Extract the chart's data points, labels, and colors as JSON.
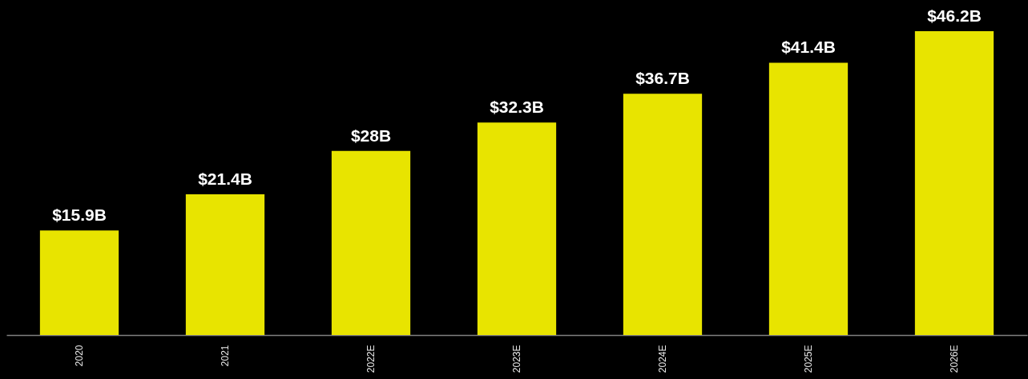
{
  "chart_data": {
    "type": "bar",
    "categories": [
      "2020",
      "2021",
      "2022E",
      "2023E",
      "2024E",
      "2025E",
      "2026E"
    ],
    "values": [
      15.9,
      21.4,
      28,
      32.3,
      36.7,
      41.4,
      46.2
    ],
    "value_labels": [
      "$15.9B",
      "$21.4B",
      "$28B",
      "$32.3B",
      "$36.7B",
      "$41.4B",
      "$46.2B"
    ],
    "color": "#e8e400"
  }
}
